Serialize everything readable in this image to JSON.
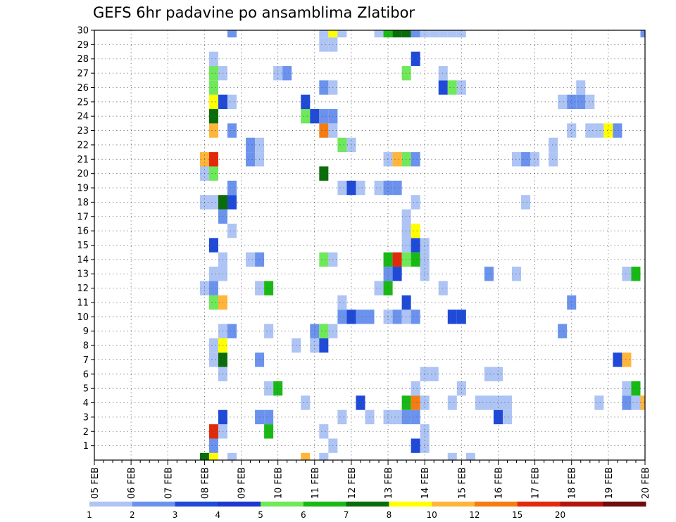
{
  "title": "GEFS 6hr padavine po ansamblima Zlatibor",
  "chart_data": {
    "type": "heatmap",
    "title": "GEFS 6hr padavine po ansamblima Zlatibor",
    "x_tick_labels": [
      "05 FEB",
      "06 FEB",
      "07 FEB",
      "08 FEB",
      "09 FEB",
      "10 FEB",
      "11 FEB",
      "12 FEB",
      "13 FEB",
      "14 FEB",
      "15 FEB",
      "16 FEB",
      "17 FEB",
      "18 FEB",
      "19 FEB",
      "20 FEB"
    ],
    "y_tick_labels": [
      1,
      2,
      3,
      4,
      5,
      6,
      7,
      8,
      9,
      10,
      11,
      12,
      13,
      14,
      15,
      16,
      17,
      18,
      19,
      20,
      21,
      22,
      23,
      24,
      25,
      26,
      27,
      28,
      29,
      30
    ],
    "xlim": [
      "05 FEB 00Z",
      "20 FEB 00Z"
    ],
    "ylim": [
      0,
      30
    ],
    "time_step_hours": 6,
    "grid": true,
    "legend_position": "bottom",
    "legend_levels": [
      1,
      2,
      3,
      4,
      5,
      6,
      7,
      8,
      10,
      12,
      15,
      20
    ],
    "legend_colors": [
      "#adc4f4",
      "#6b93ee",
      "#1f4ad8",
      "#1c38cf",
      "#6fe85a",
      "#19b915",
      "#0a6d0a",
      "#ffff00",
      "#ffb53a",
      "#f47c12",
      "#e22a0a",
      "#b4140a",
      "#6e0b0b"
    ],
    "cells": [
      [
        "08 FEB 00Z",
        0,
        "#0a6d0a"
      ],
      [
        "08 FEB 06Z",
        0,
        "#ffff00"
      ],
      [
        "08 FEB 18Z",
        0,
        "#adc4f4"
      ],
      [
        "10 FEB 18Z",
        0,
        "#ffb53a"
      ],
      [
        "11 FEB 06Z",
        0,
        "#adc4f4"
      ],
      [
        "14 FEB 18Z",
        0,
        "#adc4f4"
      ],
      [
        "15 FEB 06Z",
        0,
        "#adc4f4"
      ],
      [
        "08 FEB 06Z",
        1,
        "#6b93ee"
      ],
      [
        "11 FEB 12Z",
        1,
        "#adc4f4"
      ],
      [
        "13 FEB 18Z",
        1,
        "#1f4ad8"
      ],
      [
        "14 FEB 00Z",
        1,
        "#adc4f4"
      ],
      [
        "08 FEB 06Z",
        2,
        "#e22a0a"
      ],
      [
        "08 FEB 12Z",
        2,
        "#adc4f4"
      ],
      [
        "09 FEB 18Z",
        2,
        "#19b915"
      ],
      [
        "11 FEB 06Z",
        2,
        "#adc4f4"
      ],
      [
        "14 FEB 00Z",
        2,
        "#adc4f4"
      ],
      [
        "08 FEB 12Z",
        3,
        "#1f4ad8"
      ],
      [
        "09 FEB 12Z",
        3,
        "#6b93ee"
      ],
      [
        "09 FEB 18Z",
        3,
        "#6b93ee"
      ],
      [
        "11 FEB 18Z",
        3,
        "#adc4f4"
      ],
      [
        "12 FEB 12Z",
        3,
        "#adc4f4"
      ],
      [
        "13 FEB 00Z",
        3,
        "#adc4f4"
      ],
      [
        "13 FEB 06Z",
        3,
        "#adc4f4"
      ],
      [
        "13 FEB 12Z",
        3,
        "#6b93ee"
      ],
      [
        "13 FEB 18Z",
        3,
        "#6b93ee"
      ],
      [
        "16 FEB 00Z",
        3,
        "#1f4ad8"
      ],
      [
        "16 FEB 06Z",
        3,
        "#adc4f4"
      ],
      [
        "10 FEB 18Z",
        4,
        "#adc4f4"
      ],
      [
        "12 FEB 06Z",
        4,
        "#1f4ad8"
      ],
      [
        "13 FEB 12Z",
        4,
        "#19b915"
      ],
      [
        "13 FEB 18Z",
        4,
        "#f47c12"
      ],
      [
        "14 FEB 00Z",
        4,
        "#adc4f4"
      ],
      [
        "14 FEB 18Z",
        4,
        "#adc4f4"
      ],
      [
        "15 FEB 12Z",
        4,
        "#adc4f4"
      ],
      [
        "15 FEB 18Z",
        4,
        "#adc4f4"
      ],
      [
        "16 FEB 00Z",
        4,
        "#adc4f4"
      ],
      [
        "16 FEB 06Z",
        4,
        "#adc4f4"
      ],
      [
        "18 FEB 18Z",
        4,
        "#adc4f4"
      ],
      [
        "19 FEB 12Z",
        4,
        "#6b93ee"
      ],
      [
        "19 FEB 18Z",
        4,
        "#adc4f4"
      ],
      [
        "20 FEB 00Z",
        4,
        "#ffb53a"
      ],
      [
        "09 FEB 18Z",
        5,
        "#adc4f4"
      ],
      [
        "10 FEB 00Z",
        5,
        "#19b915"
      ],
      [
        "13 FEB 18Z",
        5,
        "#adc4f4"
      ],
      [
        "15 FEB 00Z",
        5,
        "#adc4f4"
      ],
      [
        "19 FEB 12Z",
        5,
        "#adc4f4"
      ],
      [
        "19 FEB 18Z",
        5,
        "#19b915"
      ],
      [
        "08 FEB 12Z",
        6,
        "#adc4f4"
      ],
      [
        "14 FEB 00Z",
        6,
        "#adc4f4"
      ],
      [
        "14 FEB 06Z",
        6,
        "#adc4f4"
      ],
      [
        "15 FEB 18Z",
        6,
        "#adc4f4"
      ],
      [
        "16 FEB 00Z",
        6,
        "#adc4f4"
      ],
      [
        "08 FEB 06Z",
        7,
        "#adc4f4"
      ],
      [
        "08 FEB 12Z",
        7,
        "#0a6d0a"
      ],
      [
        "09 FEB 12Z",
        7,
        "#6b93ee"
      ],
      [
        "19 FEB 06Z",
        7,
        "#1f4ad8"
      ],
      [
        "19 FEB 12Z",
        7,
        "#ffb53a"
      ],
      [
        "08 FEB 06Z",
        8,
        "#adc4f4"
      ],
      [
        "08 FEB 12Z",
        8,
        "#ffff00"
      ],
      [
        "10 FEB 12Z",
        8,
        "#adc4f4"
      ],
      [
        "11 FEB 00Z",
        8,
        "#adc4f4"
      ],
      [
        "11 FEB 06Z",
        8,
        "#1f4ad8"
      ],
      [
        "08 FEB 12Z",
        9,
        "#adc4f4"
      ],
      [
        "08 FEB 18Z",
        9,
        "#6b93ee"
      ],
      [
        "09 FEB 18Z",
        9,
        "#adc4f4"
      ],
      [
        "11 FEB 00Z",
        9,
        "#6b93ee"
      ],
      [
        "11 FEB 06Z",
        9,
        "#6fe85a"
      ],
      [
        "11 FEB 12Z",
        9,
        "#adc4f4"
      ],
      [
        "17 FEB 18Z",
        9,
        "#6b93ee"
      ],
      [
        "11 FEB 18Z",
        10,
        "#6b93ee"
      ],
      [
        "12 FEB 00Z",
        10,
        "#1f4ad8"
      ],
      [
        "12 FEB 06Z",
        10,
        "#6b93ee"
      ],
      [
        "12 FEB 12Z",
        10,
        "#6b93ee"
      ],
      [
        "13 FEB 00Z",
        10,
        "#adc4f4"
      ],
      [
        "13 FEB 06Z",
        10,
        "#6b93ee"
      ],
      [
        "13 FEB 12Z",
        10,
        "#adc4f4"
      ],
      [
        "13 FEB 18Z",
        10,
        "#6b93ee"
      ],
      [
        "14 FEB 18Z",
        10,
        "#1f4ad8"
      ],
      [
        "15 FEB 00Z",
        10,
        "#1f4ad8"
      ],
      [
        "08 FEB 06Z",
        11,
        "#6fe85a"
      ],
      [
        "08 FEB 12Z",
        11,
        "#ffb53a"
      ],
      [
        "11 FEB 18Z",
        11,
        "#adc4f4"
      ],
      [
        "13 FEB 12Z",
        11,
        "#1f4ad8"
      ],
      [
        "18 FEB 00Z",
        11,
        "#6b93ee"
      ],
      [
        "08 FEB 00Z",
        12,
        "#adc4f4"
      ],
      [
        "08 FEB 06Z",
        12,
        "#6b93ee"
      ],
      [
        "09 FEB 12Z",
        12,
        "#adc4f4"
      ],
      [
        "09 FEB 18Z",
        12,
        "#19b915"
      ],
      [
        "12 FEB 18Z",
        12,
        "#adc4f4"
      ],
      [
        "13 FEB 00Z",
        12,
        "#19b915"
      ],
      [
        "14 FEB 12Z",
        12,
        "#adc4f4"
      ],
      [
        "08 FEB 06Z",
        13,
        "#adc4f4"
      ],
      [
        "08 FEB 12Z",
        13,
        "#adc4f4"
      ],
      [
        "13 FEB 00Z",
        13,
        "#6b93ee"
      ],
      [
        "13 FEB 06Z",
        13,
        "#1f4ad8"
      ],
      [
        "14 FEB 00Z",
        13,
        "#adc4f4"
      ],
      [
        "15 FEB 18Z",
        13,
        "#6b93ee"
      ],
      [
        "16 FEB 12Z",
        13,
        "#adc4f4"
      ],
      [
        "19 FEB 12Z",
        13,
        "#adc4f4"
      ],
      [
        "19 FEB 18Z",
        13,
        "#19b915"
      ],
      [
        "08 FEB 12Z",
        14,
        "#adc4f4"
      ],
      [
        "09 FEB 06Z",
        14,
        "#adc4f4"
      ],
      [
        "09 FEB 12Z",
        14,
        "#6b93ee"
      ],
      [
        "11 FEB 06Z",
        14,
        "#6fe85a"
      ],
      [
        "11 FEB 12Z",
        14,
        "#adc4f4"
      ],
      [
        "13 FEB 00Z",
        14,
        "#19b915"
      ],
      [
        "13 FEB 06Z",
        14,
        "#e22a0a"
      ],
      [
        "13 FEB 12Z",
        14,
        "#6fe85a"
      ],
      [
        "13 FEB 18Z",
        14,
        "#19b915"
      ],
      [
        "14 FEB 00Z",
        14,
        "#adc4f4"
      ],
      [
        "08 FEB 06Z",
        15,
        "#1f4ad8"
      ],
      [
        "13 FEB 12Z",
        15,
        "#adc4f4"
      ],
      [
        "13 FEB 18Z",
        15,
        "#1f4ad8"
      ],
      [
        "14 FEB 00Z",
        15,
        "#adc4f4"
      ],
      [
        "08 FEB 18Z",
        16,
        "#adc4f4"
      ],
      [
        "13 FEB 12Z",
        16,
        "#adc4f4"
      ],
      [
        "13 FEB 18Z",
        16,
        "#ffff00"
      ],
      [
        "08 FEB 12Z",
        17,
        "#6b93ee"
      ],
      [
        "13 FEB 12Z",
        17,
        "#adc4f4"
      ],
      [
        "08 FEB 00Z",
        18,
        "#adc4f4"
      ],
      [
        "08 FEB 06Z",
        18,
        "#adc4f4"
      ],
      [
        "08 FEB 12Z",
        18,
        "#0a6d0a"
      ],
      [
        "08 FEB 18Z",
        18,
        "#1f4ad8"
      ],
      [
        "13 FEB 18Z",
        18,
        "#adc4f4"
      ],
      [
        "16 FEB 18Z",
        18,
        "#adc4f4"
      ],
      [
        "08 FEB 18Z",
        19,
        "#6b93ee"
      ],
      [
        "11 FEB 18Z",
        19,
        "#adc4f4"
      ],
      [
        "12 FEB 00Z",
        19,
        "#1f4ad8"
      ],
      [
        "12 FEB 06Z",
        19,
        "#adc4f4"
      ],
      [
        "12 FEB 18Z",
        19,
        "#adc4f4"
      ],
      [
        "13 FEB 00Z",
        19,
        "#6b93ee"
      ],
      [
        "13 FEB 06Z",
        19,
        "#6b93ee"
      ],
      [
        "08 FEB 00Z",
        20,
        "#adc4f4"
      ],
      [
        "08 FEB 06Z",
        20,
        "#6fe85a"
      ],
      [
        "11 FEB 06Z",
        20,
        "#0a6d0a"
      ],
      [
        "08 FEB 00Z",
        21,
        "#ffb53a"
      ],
      [
        "08 FEB 06Z",
        21,
        "#e22a0a"
      ],
      [
        "09 FEB 06Z",
        21,
        "#6b93ee"
      ],
      [
        "09 FEB 12Z",
        21,
        "#adc4f4"
      ],
      [
        "13 FEB 00Z",
        21,
        "#adc4f4"
      ],
      [
        "13 FEB 06Z",
        21,
        "#ffb53a"
      ],
      [
        "13 FEB 12Z",
        21,
        "#6fe85a"
      ],
      [
        "13 FEB 18Z",
        21,
        "#6b93ee"
      ],
      [
        "16 FEB 12Z",
        21,
        "#adc4f4"
      ],
      [
        "16 FEB 18Z",
        21,
        "#6b93ee"
      ],
      [
        "17 FEB 00Z",
        21,
        "#adc4f4"
      ],
      [
        "17 FEB 12Z",
        21,
        "#adc4f4"
      ],
      [
        "09 FEB 06Z",
        22,
        "#6b93ee"
      ],
      [
        "09 FEB 12Z",
        22,
        "#adc4f4"
      ],
      [
        "11 FEB 18Z",
        22,
        "#6fe85a"
      ],
      [
        "12 FEB 00Z",
        22,
        "#adc4f4"
      ],
      [
        "17 FEB 12Z",
        22,
        "#adc4f4"
      ],
      [
        "08 FEB 06Z",
        23,
        "#ffb53a"
      ],
      [
        "08 FEB 18Z",
        23,
        "#6b93ee"
      ],
      [
        "11 FEB 06Z",
        23,
        "#f47c12"
      ],
      [
        "11 FEB 12Z",
        23,
        "#adc4f4"
      ],
      [
        "18 FEB 00Z",
        23,
        "#adc4f4"
      ],
      [
        "18 FEB 12Z",
        23,
        "#adc4f4"
      ],
      [
        "18 FEB 18Z",
        23,
        "#adc4f4"
      ],
      [
        "19 FEB 00Z",
        23,
        "#ffff00"
      ],
      [
        "19 FEB 06Z",
        23,
        "#6b93ee"
      ],
      [
        "08 FEB 06Z",
        24,
        "#0a6d0a"
      ],
      [
        "10 FEB 18Z",
        24,
        "#6fe85a"
      ],
      [
        "11 FEB 00Z",
        24,
        "#1f4ad8"
      ],
      [
        "11 FEB 06Z",
        24,
        "#6b93ee"
      ],
      [
        "11 FEB 12Z",
        24,
        "#6b93ee"
      ],
      [
        "08 FEB 06Z",
        25,
        "#ffff00"
      ],
      [
        "08 FEB 12Z",
        25,
        "#1f4ad8"
      ],
      [
        "08 FEB 18Z",
        25,
        "#adc4f4"
      ],
      [
        "10 FEB 18Z",
        25,
        "#1f4ad8"
      ],
      [
        "17 FEB 18Z",
        25,
        "#adc4f4"
      ],
      [
        "18 FEB 00Z",
        25,
        "#6b93ee"
      ],
      [
        "18 FEB 06Z",
        25,
        "#6b93ee"
      ],
      [
        "18 FEB 12Z",
        25,
        "#adc4f4"
      ],
      [
        "08 FEB 06Z",
        26,
        "#6fe85a"
      ],
      [
        "11 FEB 06Z",
        26,
        "#6b93ee"
      ],
      [
        "11 FEB 12Z",
        26,
        "#adc4f4"
      ],
      [
        "14 FEB 12Z",
        26,
        "#1f4ad8"
      ],
      [
        "14 FEB 18Z",
        26,
        "#6fe85a"
      ],
      [
        "15 FEB 00Z",
        26,
        "#adc4f4"
      ],
      [
        "18 FEB 06Z",
        26,
        "#adc4f4"
      ],
      [
        "08 FEB 06Z",
        27,
        "#6fe85a"
      ],
      [
        "08 FEB 12Z",
        27,
        "#adc4f4"
      ],
      [
        "10 FEB 00Z",
        27,
        "#adc4f4"
      ],
      [
        "10 FEB 06Z",
        27,
        "#6b93ee"
      ],
      [
        "13 FEB 12Z",
        27,
        "#6fe85a"
      ],
      [
        "14 FEB 12Z",
        27,
        "#adc4f4"
      ],
      [
        "08 FEB 06Z",
        28,
        "#adc4f4"
      ],
      [
        "13 FEB 18Z",
        28,
        "#1f4ad8"
      ],
      [
        "11 FEB 06Z",
        29,
        "#adc4f4"
      ],
      [
        "11 FEB 12Z",
        29,
        "#adc4f4"
      ],
      [
        "08 FEB 18Z",
        30,
        "#6b93ee"
      ],
      [
        "11 FEB 06Z",
        30,
        "#adc4f4"
      ],
      [
        "11 FEB 12Z",
        30,
        "#ffff00"
      ],
      [
        "11 FEB 18Z",
        30,
        "#adc4f4"
      ],
      [
        "12 FEB 18Z",
        30,
        "#adc4f4"
      ],
      [
        "13 FEB 00Z",
        30,
        "#19b915"
      ],
      [
        "13 FEB 06Z",
        30,
        "#0a6d0a"
      ],
      [
        "13 FEB 12Z",
        30,
        "#0a6d0a"
      ],
      [
        "13 FEB 18Z",
        30,
        "#6b93ee"
      ],
      [
        "14 FEB 00Z",
        30,
        "#adc4f4"
      ],
      [
        "14 FEB 06Z",
        30,
        "#adc4f4"
      ],
      [
        "14 FEB 12Z",
        30,
        "#adc4f4"
      ],
      [
        "14 FEB 18Z",
        30,
        "#adc4f4"
      ],
      [
        "15 FEB 00Z",
        30,
        "#adc4f4"
      ],
      [
        "20 FEB 00Z",
        30,
        "#6b93ee"
      ]
    ]
  }
}
